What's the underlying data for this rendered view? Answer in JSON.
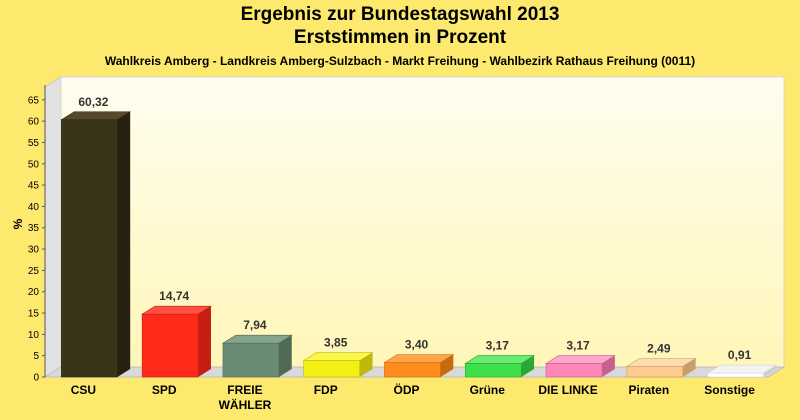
{
  "header": {
    "title_line1": "Ergebnis zur Bundestagswahl 2013",
    "title_line2": "Erststimmen in Prozent",
    "subtitle": "Wahlkreis Amberg - Landkreis Amberg-Sulzbach - Markt Freihung - Wahlbezirk Rathaus Freihung (0011)"
  },
  "chart_data": {
    "type": "bar",
    "title": "Ergebnis zur Bundestagswahl 2013",
    "subtitle": "Erststimmen in Prozent",
    "ylabel": "%",
    "xlabel": "",
    "ylim": [
      0,
      68
    ],
    "yticks": [
      0,
      5,
      10,
      15,
      20,
      25,
      30,
      35,
      40,
      45,
      50,
      55,
      60,
      65
    ],
    "grid": false,
    "legend": "none",
    "categories": [
      "CSU",
      "SPD",
      "FREIE WÄHLER",
      "FDP",
      "ÖDP",
      "Grüne",
      "DIE LINKE",
      "Piraten",
      "Sonstige"
    ],
    "values": [
      60.32,
      14.74,
      7.94,
      3.85,
      3.4,
      3.17,
      3.17,
      2.49,
      0.91
    ],
    "value_labels": [
      "60,32",
      "14,74",
      "7,94",
      "3,85",
      "3,40",
      "3,17",
      "3,17",
      "2,49",
      "0,91"
    ],
    "category_lines": [
      [
        "CSU"
      ],
      [
        "SPD"
      ],
      [
        "FREIE",
        "WÄHLER"
      ],
      [
        "FDP"
      ],
      [
        "ÖDP"
      ],
      [
        "Grüne"
      ],
      [
        "DIE LINKE"
      ],
      [
        "Piraten"
      ],
      [
        "Sonstige"
      ]
    ],
    "colors": [
      "#3a3418",
      "#ff2a1a",
      "#6b8c74",
      "#f5f013",
      "#ff8c1a",
      "#3ee04a",
      "#ff86b8",
      "#ffc98f",
      "#ffffff"
    ],
    "colors_dark": [
      "#26220f",
      "#c41f12",
      "#4f6a57",
      "#bdb80d",
      "#c86a10",
      "#2aa834",
      "#c8608c",
      "#c89e6e",
      "#d0d0d0"
    ],
    "colors_top": [
      "#54492a",
      "#ff5040",
      "#86a48e",
      "#fbf64a",
      "#ffa64a",
      "#6aea73",
      "#ffa6cc",
      "#ffdcb0",
      "#f4f4f4"
    ]
  }
}
